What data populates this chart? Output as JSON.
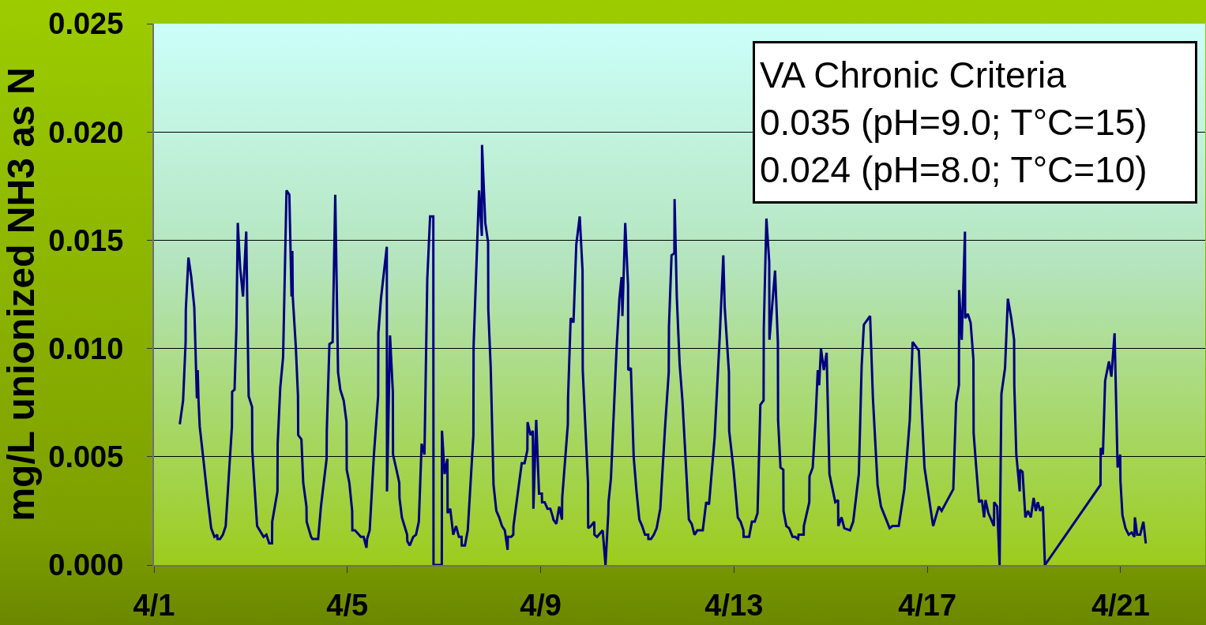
{
  "chart_data": {
    "type": "line",
    "ylabel": "mg/L unionized NH3 as N",
    "annotations": [
      "VA Chronic Criteria\n0.035 (pH=9.0; T°C=15)\n0.024 (pH=8.0; T°C=10)"
    ],
    "x": [
      "--04-01T12:48",
      "--04-01T14:27",
      "--04-01T15:42",
      "--04-01T15:48",
      "--04-01T17:06",
      "--04-01T18:30",
      "--04-01T20:00",
      "--04-01T21:18",
      "--04-01T21:42",
      "--04-01T22:06",
      "--04-01T22:42",
      "--04-02T00:30",
      "--04-02T02:36",
      "--04-02T04:24",
      "--04-02T06:00",
      "--04-02T07:24",
      "--04-02T07:30",
      "--04-02T08:48",
      "--04-02T10:12",
      "--04-02T11:36",
      "--04-02T13:00",
      "--04-02T14:42",
      "--04-02T14:48",
      "--04-02T16:00",
      "--04-02T16:54",
      "--04-02T17:36",
      "--04-02T18:48",
      "--04-02T20:12",
      "--04-02T21:48",
      "--04-02T23:00",
      "--04-03T00:42",
      "--04-03T00:48",
      "--04-03T01:48",
      "--04-03T03:12",
      "--04-03T06:24",
      "--04-03T07:48",
      "--04-03T09:12",
      "--04-03T10:36",
      "--04-03T10:42",
      "--04-03T13:18",
      "--04-03T13:24",
      "--04-03T14:42",
      "--04-03T16:06",
      "--04-03T17:48",
      "--04-03T19:12",
      "--04-03T20:18",
      "--04-03T20:42",
      "--04-03T20:54",
      "--04-03T22:24",
      "--04-03T23:30",
      "--04-03T23:36",
      "--04-04T01:12",
      "--04-04T02:06",
      "--04-04T03:42",
      "--04-04T03:48",
      "--04-04T06:00",
      "--04-04T06:42",
      "--04-04T09:30",
      "--04-04T10:54",
      "--04-04T13:42",
      "--04-04T13:48",
      "--04-04T15:06",
      "--04-04T16:42",
      "--04-04T18:00",
      "--04-04T19:24",
      "--04-04T20:30",
      "--04-04T22:12",
      "--04-04T23:36",
      "--04-04T23:42",
      "--04-05T01:00",
      "--04-05T02:24",
      "--04-05T02:30",
      "--04-05T03:48",
      "--04-05T06:42",
      "--04-05T08:06",
      "--04-05T09:30",
      "--04-05T09:48",
      "--04-05T11:06",
      "--04-05T13:12",
      "--04-05T15:18",
      "--04-05T15:24",
      "--04-05T16:42",
      "--04-05T19:36",
      "--04-05T19:42",
      "--04-05T21:12",
      "--04-05T22:36",
      "--04-05T22:42",
      "--04-06T00:24",
      "--04-06T01:48",
      "--04-06T01:54",
      "--04-06T03:06",
      "--04-06T05:42",
      "--04-06T05:48",
      "--04-06T07:00",
      "--04-06T08:42",
      "--04-06T10:06",
      "--04-06T11:30",
      "--04-06T12:54",
      "--04-06T14:18",
      "--04-06T15:42",
      "--04-06T17:06",
      "--04-06T18:42",
      "--04-06T18:48",
      "--04-06T22:54",
      "--04-06T23:00",
      "--04-07T00:18",
      "--04-07T01:42",
      "--04-07T01:48",
      "--04-07T03:06",
      "--04-07T04:36",
      "--04-07T06:00",
      "--04-07T07:24",
      "--04-07T08:42",
      "--04-07T08:48",
      "--04-07T10:24",
      "--04-07T11:48",
      "--04-07T14:36",
      "--04-07T14:42",
      "--04-07T17:24",
      "--04-07T18:48",
      "--04-07T18:54",
      "--04-07T20:30",
      "--04-07T21:54",
      "--04-07T22:00",
      "--04-07T23:12",
      "--04-08T00:36",
      "--04-08T02:00",
      "--04-08T03:24",
      "--04-08T04:48",
      "--04-08T06:12",
      "--04-08T07:36",
      "--04-08T07:42",
      "--04-08T09:24",
      "--04-08T10:24",
      "--04-08T10:30",
      "--04-08T14:36",
      "--04-08T16:00",
      "--04-08T17:24",
      "--04-08T17:30",
      "--04-08T19:00",
      "--04-08T20:06",
      "--04-08T20:24",
      "--04-08T21:48",
      "--04-08T23:12",
      "--04-09T00:36",
      "--04-09T00:42",
      "--04-09T02:00",
      "--04-09T03:24",
      "--04-09T04:48",
      "--04-09T06:06",
      "--04-09T06:18",
      "--04-09T07:48",
      "--04-09T09:12",
      "--04-09T10:36",
      "--04-09T10:42",
      "--04-09T13:30",
      "--04-09T13:36",
      "--04-09T14:54",
      "--04-09T16:18",
      "--04-09T17:42",
      "--04-09T19:24",
      "--04-09T20:48",
      "--04-09T20:54",
      "--04-09T22:06",
      "--04-09T23:30",
      "--04-09T23:36",
      "--04-10T00:54",
      "--04-10T02:36",
      "--04-10T02:42",
      "--04-10T04:00",
      "--04-10T06:48",
      "--04-10T08:12",
      "--04-10T09:36",
      "--04-10T09:42",
      "--04-10T10:54",
      "--04-10T13:42",
      "--04-10T15:06",
      "--04-10T16:12",
      "--04-10T16:36",
      "--04-10T18:00",
      "--04-10T19:24",
      "--04-10T19:30",
      "--04-10T20:48",
      "--04-10T22:12",
      "--04-10T23:36",
      "--04-11T01:00",
      "--04-11T02:24",
      "--04-11T03:48",
      "--04-11T05:24",
      "--04-11T05:30",
      "--04-11T06:48",
      "--04-11T08:12",
      "--04-11T09:36",
      "--04-11T11:24",
      "--04-11T13:48",
      "--04-11T15:36",
      "--04-11T15:42",
      "--04-11T17:00",
      "--04-11T18:24",
      "--04-11T18:30",
      "--04-11T19:36",
      "--04-11T21:00",
      "--04-11T22:24",
      "--04-12T01:36",
      "--04-12T03:00",
      "--04-12T04:24",
      "--04-12T05:48",
      "--04-12T07:24",
      "--04-12T08:30",
      "--04-12T10:12",
      "--04-12T11:36",
      "--04-12T14:24",
      "--04-12T15:48",
      "--04-12T16:54",
      "--04-12T18:42",
      "--04-12T19:24",
      "--04-12T21:30",
      "--04-12T21:36",
      "--04-12T23:48",
      "--04-13T01:54",
      "--04-13T03:18",
      "--04-13T04:42",
      "--04-13T04:48",
      "--04-13T07:30",
      "--04-13T08:54",
      "--04-13T10:18",
      "--04-13T11:42",
      "--04-13T13:06",
      "--04-13T14:42",
      "--04-13T14:48",
      "--04-13T16:06",
      "--04-13T17:30",
      "--04-13T17:36",
      "--04-13T20:24",
      "--04-13T21:48",
      "--04-13T21:54",
      "--04-13T23:06",
      "--04-14T00:30",
      "--04-14T00:36",
      "--04-14T02:00",
      "--04-14T03:24",
      "--04-14T05:06",
      "--04-14T06:24",
      "--04-14T07:48",
      "--04-14T08:06",
      "--04-14T10:36",
      "--04-14T10:42",
      "--04-14T13:24",
      "--04-14T13:30",
      "--04-14T15:06",
      "--04-14T16:30",
      "--04-14T17:36",
      "--04-14T18:18",
      "--04-14T19:12",
      "--04-14T20:36",
      "--04-14T22:00",
      "--04-14T23:24",
      "--04-15T02:18",
      "--04-15T03:42",
      "--04-15T03:48",
      "--04-15T05:24",
      "--04-15T06:48",
      "--04-15T09:36",
      "--04-15T11:12",
      "--04-15T14:00",
      "--04-15T15:24",
      "--04-15T16:30",
      "--04-15T19:36",
      "--04-15T21:00",
      "--04-15T23:18",
      "--04-16T01:00",
      "--04-16T05:18",
      "--04-16T06:42",
      "--04-16T09:48",
      "--04-16T12:36",
      "--04-16T15:18",
      "--04-16T16:42",
      "--04-16T19:48",
      "--04-16T22:36",
      "--04-17T02:54",
      "--04-17T05:42",
      "--04-17T07:06",
      "--04-17T12:54",
      "--04-17T14:18",
      "--04-17T15:42",
      "--04-17T15:48",
      "--04-17T17:06",
      "--04-17T18:42",
      "--04-17T18:48",
      "--04-17T20:06",
      "--04-17T21:30",
      "--04-17T22:54",
      "--04-17T23:00",
      "--04-18T00:18",
      "--04-18T01:42",
      "--04-18T03:06",
      "--04-18T04:12",
      "--04-18T04:54",
      "--04-18T06:18",
      "--04-18T09:06",
      "--04-18T09:12",
      "--04-18T10:42",
      "--04-18T11:54",
      "--04-18T12:48",
      "--04-18T14:36",
      "--04-18T16:00",
      "--04-18T17:42",
      "--04-18T19:06",
      "--04-18T19:12",
      "--04-18T20:12",
      "--04-18T21:54",
      "--04-18T22:00",
      "--04-18T23:18",
      "--04-19T00:42",
      "--04-19T02:00",
      "--04-19T03:24",
      "--04-19T04:48",
      "--04-19T05:54",
      "--04-19T06:54",
      "--04-19T08:00",
      "--04-19T09:24",
      "--04-19T10:24",
      "--04-20T14:00",
      "--04-20T14:06",
      "--04-20T15:12",
      "--04-20T16:18",
      "--04-20T18:12",
      "--04-20T19:24",
      "--04-20T21:00",
      "--04-20T22:30",
      "--04-20T23:48",
      "--04-20T23:54",
      "--04-21T00:54",
      "--04-21T02:24",
      "--04-21T04:00",
      "--04-21T05:30",
      "--04-21T06:48",
      "--04-21T07:06",
      "--04-21T08:12",
      "--04-21T09:42",
      "--04-21T11:18",
      "--04-21T12:30"
    ],
    "series": [
      {
        "color": "#000080",
        "values": [
          0.0065,
          0.0076,
          0.0103,
          0.0118,
          0.0142,
          0.0133,
          0.0119,
          0.0077,
          0.009,
          0.0076,
          0.0064,
          0.0049,
          0.0031,
          0.0017,
          0.0013,
          0.0014,
          0.0012,
          0.0012,
          0.0014,
          0.0018,
          0.0039,
          0.0064,
          0.008,
          0.0081,
          0.0109,
          0.0158,
          0.0137,
          0.0124,
          0.0154,
          0.0078,
          0.0073,
          0.0053,
          0.0038,
          0.0018,
          0.0013,
          0.0014,
          0.001,
          0.001,
          0.002,
          0.0034,
          0.0056,
          0.0082,
          0.0096,
          0.0173,
          0.0171,
          0.0124,
          0.0145,
          0.0124,
          0.0101,
          0.0078,
          0.006,
          0.0058,
          0.0038,
          0.0027,
          0.002,
          0.0013,
          0.0012,
          0.0012,
          0.0027,
          0.0049,
          0.0062,
          0.0102,
          0.0103,
          0.0171,
          0.0089,
          0.0081,
          0.0076,
          0.0066,
          0.0044,
          0.0038,
          0.0025,
          0.0016,
          0.0016,
          0.0013,
          0.0013,
          0.0008,
          0.0012,
          0.0016,
          0.0051,
          0.0078,
          0.0107,
          0.0123,
          0.0147,
          0.0034,
          0.0106,
          0.008,
          0.0051,
          0.0044,
          0.0038,
          0.0031,
          0.0022,
          0.0014,
          0.0011,
          0.0009,
          0.0013,
          0.0014,
          0.002,
          0.0056,
          0.0051,
          0.0132,
          0.0161,
          0.0161,
          0,
          0,
          0.0062,
          0.0042,
          0.0049,
          0.0024,
          0.0026,
          0.0014,
          0.0018,
          0.0013,
          0.0013,
          0.0009,
          0.0009,
          0.0016,
          0.006,
          0.0101,
          0.0173,
          0.0152,
          0.0194,
          0.0158,
          0.0149,
          0.0118,
          0.0091,
          0.0037,
          0.0025,
          0.0022,
          0.0018,
          0.0016,
          0.0007,
          0.0013,
          0.0013,
          0.0014,
          0.0018,
          0.0047,
          0.0047,
          0.0053,
          0.0066,
          0.006,
          0.0062,
          0.0026,
          0.0067,
          0.0033,
          0.0033,
          0.0029,
          0.0029,
          0.0026,
          0.0026,
          0.0022,
          0.0021,
          0.0019,
          0.0027,
          0.0021,
          0.0031,
          0.0065,
          0.0077,
          0.0114,
          0.0112,
          0.0148,
          0.0161,
          0.0136,
          0.009,
          0.0066,
          0.0038,
          0.0017,
          0.0018,
          0.002,
          0.0014,
          0.0013,
          0.0016,
          0,
          0.0024,
          0.0029,
          0.004,
          0.01,
          0.0123,
          0.0133,
          0.0115,
          0.0158,
          0.0129,
          0.009,
          0.0091,
          0.005,
          0.0034,
          0.0021,
          0.0018,
          0.0014,
          0.0014,
          0.0012,
          0.0012,
          0.0014,
          0.0017,
          0.0026,
          0.0064,
          0.0089,
          0.011,
          0.0143,
          0.0144,
          0.0169,
          0.0124,
          0.0093,
          0.0076,
          0.0021,
          0.0019,
          0.0014,
          0.0016,
          0.0016,
          0.0016,
          0.0029,
          0.0028,
          0.0059,
          0.0085,
          0.0105,
          0.0143,
          0.0119,
          0.0089,
          0.0062,
          0.0044,
          0.0022,
          0.002,
          0.0016,
          0.0013,
          0.0013,
          0.002,
          0.002,
          0.0024,
          0.0074,
          0.0076,
          0.0109,
          0.016,
          0.014,
          0.0104,
          0.0136,
          0.0103,
          0.0067,
          0.0045,
          0.0044,
          0.0025,
          0.0018,
          0.0017,
          0.0013,
          0.0013,
          0.0012,
          0.0014,
          0.0014,
          0.0018,
          0.0029,
          0.0041,
          0.0045,
          0.0067,
          0.009,
          0.0083,
          0.01,
          0.009,
          0.0098,
          0.0042,
          0.0029,
          0.003,
          0.0018,
          0.0022,
          0.0017,
          0.0016,
          0.002,
          0.0042,
          0.0092,
          0.0111,
          0.0115,
          0.0077,
          0.0037,
          0.0027,
          0.0017,
          0.0018,
          0.0018,
          0.0035,
          0.0067,
          0.0103,
          0.0099,
          0.0045,
          0.0018,
          0.0027,
          0.0025,
          0.0035,
          0.0075,
          0.0083,
          0.0127,
          0.0104,
          0.0154,
          0.0114,
          0.0116,
          0.0112,
          0.0095,
          0.0061,
          0.0045,
          0.0029,
          0.003,
          0.0022,
          0.003,
          0.0024,
          0.0018,
          0.0029,
          0.0027,
          0,
          0.0079,
          0.0091,
          0.0123,
          0.0114,
          0.0104,
          0.0083,
          0.0051,
          0.0034,
          0.0044,
          0.0043,
          0.0022,
          0.0025,
          0.0022,
          0.0031,
          0.0025,
          0.0029,
          0.0025,
          0.0027,
          0,
          0.0037,
          0.0054,
          0.0051,
          0.0085,
          0.0094,
          0.0087,
          0.0107,
          0.0045,
          0.0051,
          0.0039,
          0.0023,
          0.0017,
          0.0014,
          0.0015,
          0.0013,
          0.0022,
          0.0014,
          0.0014,
          0.002,
          0.001
        ]
      }
    ],
    "xlim": [
      "--04-01",
      "--04-22T18:00"
    ],
    "xticks": [
      {
        "value": "--04-01",
        "label": "4/1"
      },
      {
        "value": "--04-05",
        "label": "4/5"
      },
      {
        "value": "--04-09",
        "label": "4/9"
      },
      {
        "value": "--04-13",
        "label": "4/13"
      },
      {
        "value": "--04-17",
        "label": "4/17"
      },
      {
        "value": "--04-21",
        "label": "4/21"
      }
    ],
    "ylim": [
      0,
      0.025
    ],
    "yticks": [
      {
        "value": 0,
        "label": "0.000"
      },
      {
        "value": 0.005,
        "label": "0.005"
      },
      {
        "value": 0.01,
        "label": "0.010"
      },
      {
        "value": 0.015,
        "label": "0.015"
      },
      {
        "value": 0.02,
        "label": "0.020"
      },
      {
        "value": 0.025,
        "label": "0.025"
      }
    ],
    "grid": "y",
    "marker": "none",
    "line_style": "solid"
  }
}
